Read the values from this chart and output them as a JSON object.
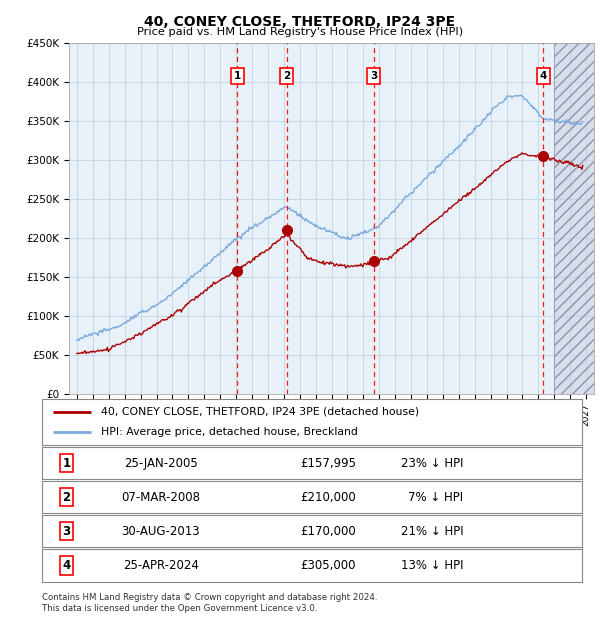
{
  "title": "40, CONEY CLOSE, THETFORD, IP24 3PE",
  "subtitle": "Price paid vs. HM Land Registry's House Price Index (HPI)",
  "ylim": [
    0,
    450000
  ],
  "yticks": [
    0,
    50000,
    100000,
    150000,
    200000,
    250000,
    300000,
    350000,
    400000,
    450000
  ],
  "ytick_labels": [
    "£0",
    "£50K",
    "£100K",
    "£150K",
    "£200K",
    "£250K",
    "£300K",
    "£350K",
    "£400K",
    "£450K"
  ],
  "xlim_start": 1994.5,
  "xlim_end": 2027.5,
  "sales": [
    {
      "num": 1,
      "date": "25-JAN-2005",
      "price": 157995,
      "hpi_diff": "23% ↓ HPI",
      "x": 2005.07
    },
    {
      "num": 2,
      "date": "07-MAR-2008",
      "price": 210000,
      "hpi_diff": "7% ↓ HPI",
      "x": 2008.19
    },
    {
      "num": 3,
      "date": "30-AUG-2013",
      "price": 170000,
      "hpi_diff": "21% ↓ HPI",
      "x": 2013.66
    },
    {
      "num": 4,
      "date": "25-APR-2024",
      "price": 305000,
      "hpi_diff": "13% ↓ HPI",
      "x": 2024.32
    }
  ],
  "legend_line1": "40, CONEY CLOSE, THETFORD, IP24 3PE (detached house)",
  "legend_line2": "HPI: Average price, detached house, Breckland",
  "footer": "Contains HM Land Registry data © Crown copyright and database right 2024.\nThis data is licensed under the Open Government Licence v3.0.",
  "line_color_red": "#aa0000",
  "line_color_blue": "#7aaadd",
  "grid_color": "#c8d8e8",
  "plot_bg": "#e8f0f8",
  "background_color": "#ffffff",
  "hatch_start": 2025.0
}
